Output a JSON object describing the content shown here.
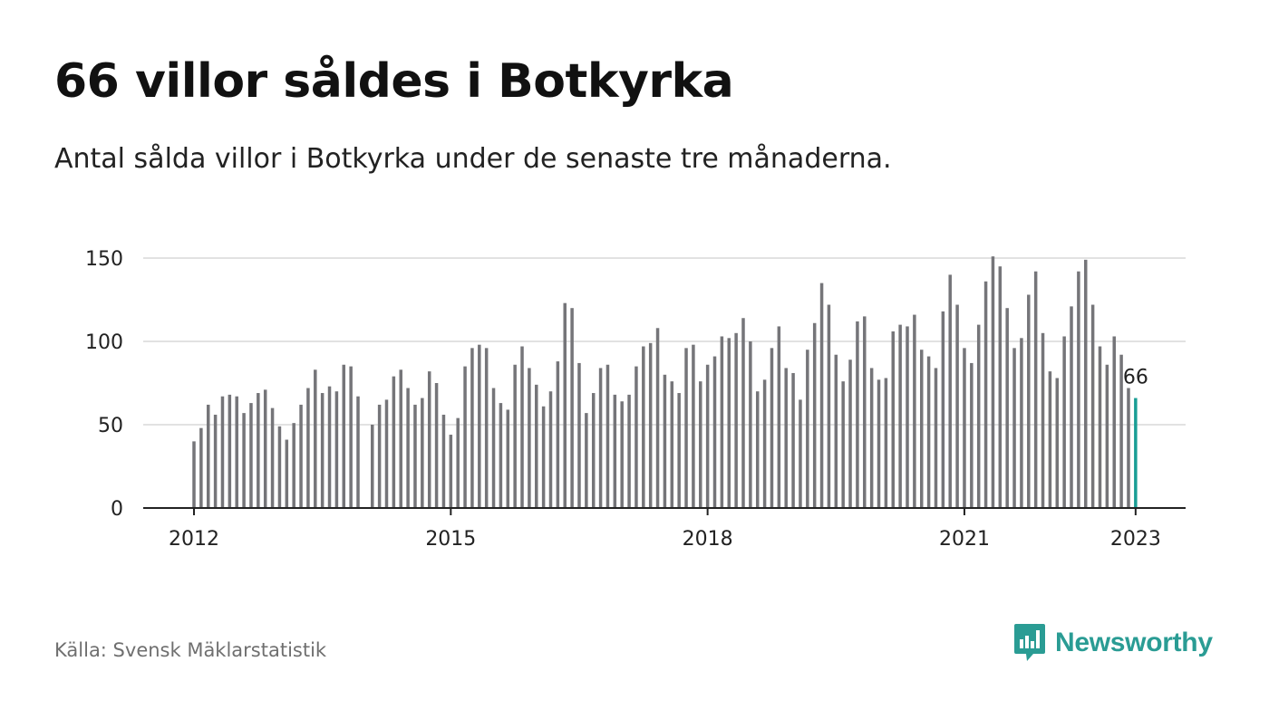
{
  "header": {
    "title": "66 villor såldes i Botkyrka",
    "subtitle": "Antal sålda villor i Botkyrka under de senaste tre månaderna."
  },
  "footer": {
    "source": "Källa: Svensk Mäklarstatistik",
    "brand_name": "Newsworthy",
    "brand_icon": "bar-chart-speech-bubble-icon"
  },
  "colors": {
    "bar": "#757579",
    "highlight": "#1a9e95",
    "grid": "#d9d9d9",
    "axis": "#222222",
    "brand": "#2a9c94"
  },
  "chart_data": {
    "type": "bar",
    "title": "66 villor såldes i Botkyrka",
    "subtitle": "Antal sålda villor i Botkyrka under de senaste tre månaderna.",
    "xlabel": "",
    "ylabel": "",
    "ylim": [
      0,
      150
    ],
    "yticks": [
      0,
      50,
      100,
      150
    ],
    "xticks": [
      "2012",
      "2015",
      "2018",
      "2021",
      "2023"
    ],
    "grid": true,
    "legend": "none",
    "x_start": "2012-01",
    "x_end": "2023-01",
    "highlight_label": "66",
    "categories": [
      "2012-01",
      "2012-02",
      "2012-03",
      "2012-04",
      "2012-05",
      "2012-06",
      "2012-07",
      "2012-08",
      "2012-09",
      "2012-10",
      "2012-11",
      "2012-12",
      "2013-01",
      "2013-02",
      "2013-03",
      "2013-04",
      "2013-05",
      "2013-06",
      "2013-07",
      "2013-08",
      "2013-09",
      "2013-10",
      "2013-11",
      "2013-12",
      "2014-01",
      "2014-02",
      "2014-03",
      "2014-04",
      "2014-05",
      "2014-06",
      "2014-07",
      "2014-08",
      "2014-09",
      "2014-10",
      "2014-11",
      "2014-12",
      "2015-01",
      "2015-02",
      "2015-03",
      "2015-04",
      "2015-05",
      "2015-06",
      "2015-07",
      "2015-08",
      "2015-09",
      "2015-10",
      "2015-11",
      "2015-12",
      "2016-01",
      "2016-02",
      "2016-03",
      "2016-04",
      "2016-05",
      "2016-06",
      "2016-07",
      "2016-08",
      "2016-09",
      "2016-10",
      "2016-11",
      "2016-12",
      "2017-01",
      "2017-02",
      "2017-03",
      "2017-04",
      "2017-05",
      "2017-06",
      "2017-07",
      "2017-08",
      "2017-09",
      "2017-10",
      "2017-11",
      "2017-12",
      "2018-01",
      "2018-02",
      "2018-03",
      "2018-04",
      "2018-05",
      "2018-06",
      "2018-07",
      "2018-08",
      "2018-09",
      "2018-10",
      "2018-11",
      "2018-12",
      "2019-01",
      "2019-02",
      "2019-03",
      "2019-04",
      "2019-05",
      "2019-06",
      "2019-07",
      "2019-08",
      "2019-09",
      "2019-10",
      "2019-11",
      "2019-12",
      "2020-01",
      "2020-02",
      "2020-03",
      "2020-04",
      "2020-05",
      "2020-06",
      "2020-07",
      "2020-08",
      "2020-09",
      "2020-10",
      "2020-11",
      "2020-12",
      "2021-01",
      "2021-02",
      "2021-03",
      "2021-04",
      "2021-05",
      "2021-06",
      "2021-07",
      "2021-08",
      "2021-09",
      "2021-10",
      "2021-11",
      "2021-12",
      "2022-01",
      "2022-02",
      "2022-03",
      "2022-04",
      "2022-05",
      "2022-06",
      "2022-07",
      "2022-08",
      "2022-09",
      "2022-10",
      "2022-11",
      "2022-12",
      "2023-01"
    ],
    "values": [
      40,
      48,
      62,
      56,
      67,
      68,
      67,
      57,
      63,
      69,
      71,
      60,
      49,
      41,
      51,
      62,
      72,
      83,
      69,
      73,
      70,
      86,
      85,
      67,
      null,
      50,
      62,
      65,
      79,
      83,
      72,
      62,
      66,
      82,
      75,
      56,
      44,
      54,
      85,
      96,
      98,
      96,
      72,
      63,
      59,
      86,
      97,
      84,
      74,
      61,
      70,
      88,
      123,
      120,
      87,
      57,
      69,
      84,
      86,
      68,
      64,
      68,
      85,
      97,
      99,
      108,
      80,
      76,
      69,
      96,
      98,
      76,
      86,
      91,
      103,
      102,
      105,
      114,
      100,
      70,
      77,
      96,
      109,
      84,
      81,
      65,
      95,
      111,
      135,
      122,
      92,
      76,
      89,
      112,
      115,
      84,
      77,
      78,
      106,
      110,
      109,
      116,
      95,
      91,
      84,
      118,
      140,
      122,
      96,
      87,
      110,
      136,
      151,
      145,
      120,
      96,
      102,
      128,
      142,
      105,
      82,
      78,
      103,
      121,
      142,
      149,
      122,
      97,
      86,
      103,
      92,
      72,
      66
    ]
  }
}
